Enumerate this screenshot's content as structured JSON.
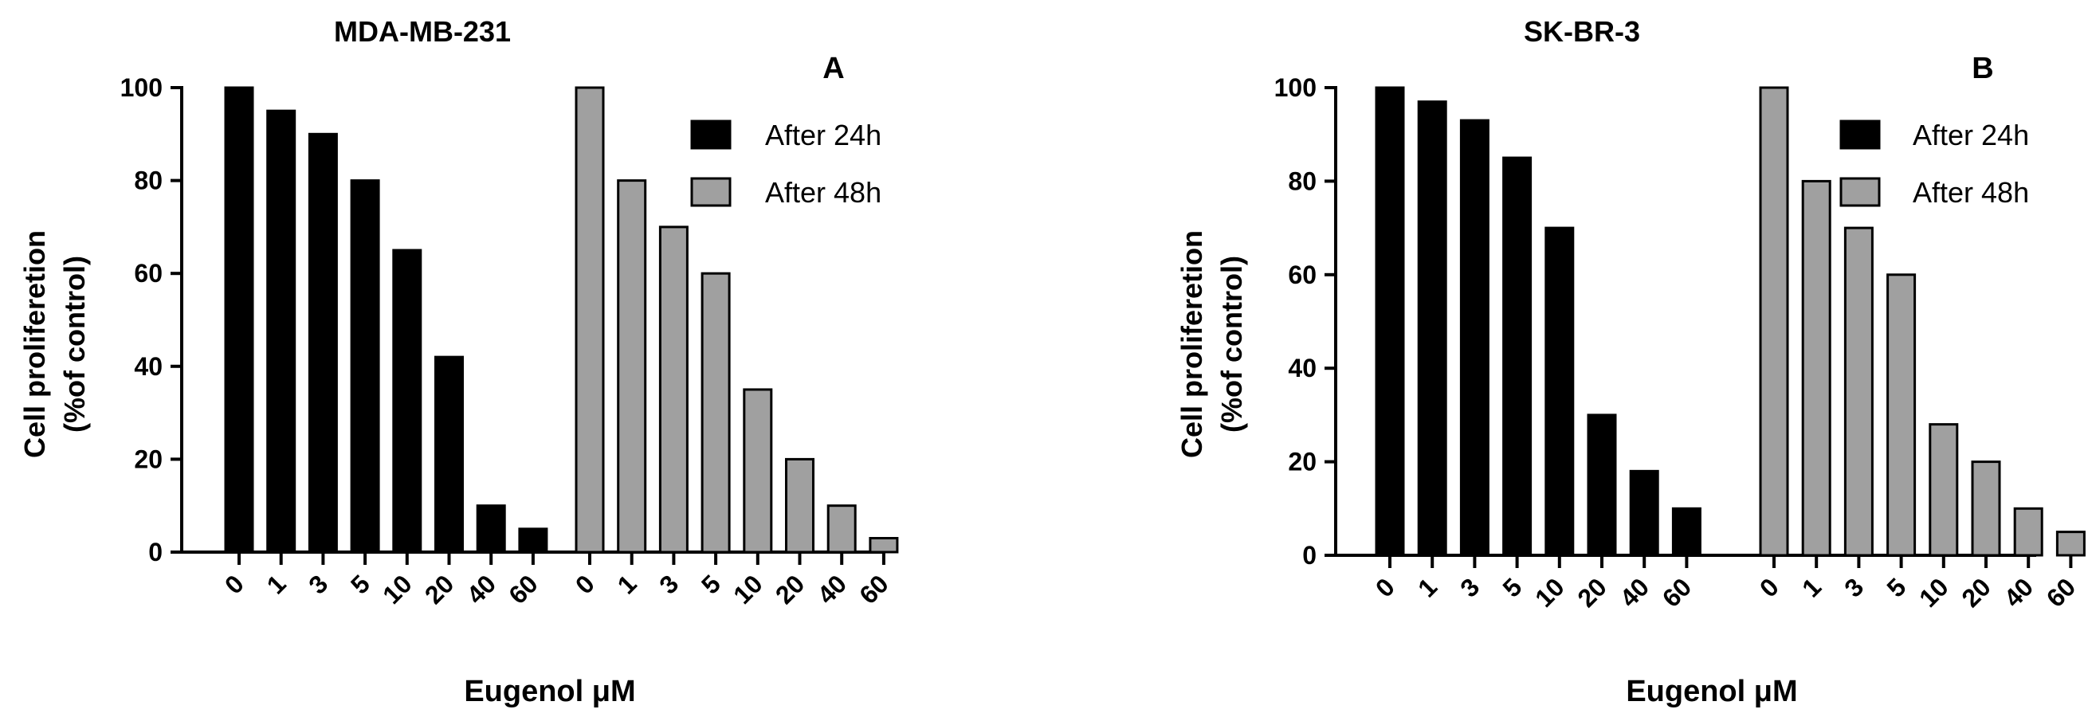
{
  "colors": {
    "after24": "#000000",
    "after48": "#a0a0a0",
    "axis": "#000000"
  },
  "chart_data": [
    {
      "type": "bar",
      "title": "MDA-MB-231",
      "panel": "A",
      "xlabel": "Eugenol μM",
      "ylabel_line1": "Cell proliferetion",
      "ylabel_line2": "(%of control)",
      "ylim": [
        0,
        100
      ],
      "yticks": [
        "0",
        "20",
        "40",
        "60",
        "80",
        "100"
      ],
      "categories": [
        "0",
        "1",
        "3",
        "5",
        "10",
        "20",
        "40",
        "60"
      ],
      "legend": [
        "After 24h",
        "After 48h"
      ],
      "legend_position": "top-right",
      "grid": false,
      "series": [
        {
          "name": "After 24h",
          "values": [
            100,
            95,
            90,
            80,
            65,
            42,
            10,
            5
          ]
        },
        {
          "name": "After 48h",
          "values": [
            100,
            80,
            70,
            60,
            35,
            20,
            10,
            3
          ]
        }
      ]
    },
    {
      "type": "bar",
      "title": "SK-BR-3",
      "panel": "B",
      "xlabel": "Eugenol μM",
      "ylabel_line1": "Cell proliferetion",
      "ylabel_line2": "(%of control)",
      "ylim": [
        0,
        100
      ],
      "yticks": [
        "0",
        "20",
        "40",
        "60",
        "80",
        "100"
      ],
      "categories": [
        "0",
        "1",
        "3",
        "5",
        "10",
        "20",
        "40",
        "60"
      ],
      "legend": [
        "After 24h",
        "After 48h"
      ],
      "legend_position": "top-right",
      "grid": false,
      "series": [
        {
          "name": "After 24h",
          "values": [
            100,
            97,
            93,
            85,
            70,
            30,
            18,
            10
          ]
        },
        {
          "name": "After 48h",
          "values": [
            100,
            80,
            70,
            60,
            28,
            20,
            10,
            5
          ]
        }
      ]
    }
  ]
}
